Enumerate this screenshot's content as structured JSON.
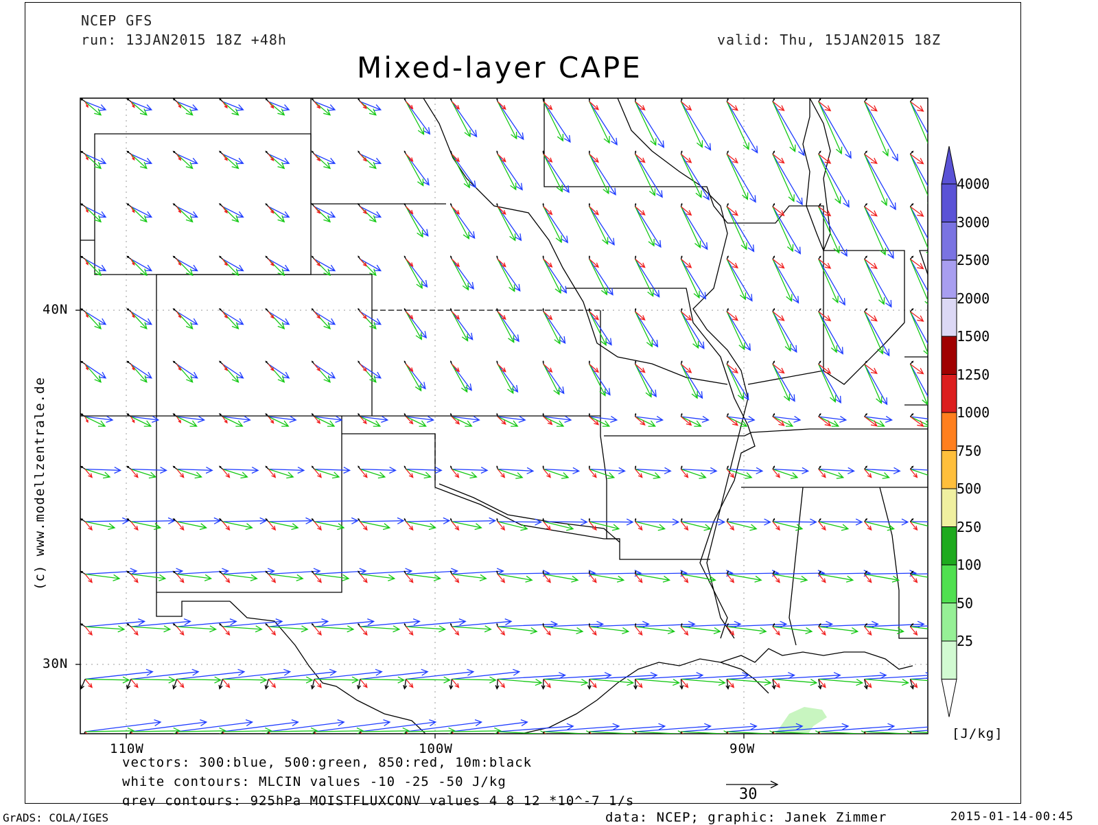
{
  "header": {
    "model": "NCEP GFS",
    "run": "run: 13JAN2015 18Z +48h",
    "valid": "valid: Thu, 15JAN2015 18Z",
    "title": "Mixed-layer CAPE"
  },
  "map": {
    "lat_labels": [
      "40N",
      "30N"
    ],
    "lon_labels": [
      "110W",
      "100W",
      "90W"
    ],
    "credit": "(c) www.modellzentrale.de",
    "reference_vector_label": "30"
  },
  "colorbar": {
    "unit": "[J/kg]",
    "levels": [
      "4000",
      "3000",
      "2500",
      "2000",
      "1500",
      "1250",
      "1000",
      "750",
      "500",
      "250",
      "100",
      "50",
      "25"
    ],
    "colors": [
      "#5a52d6",
      "#7a73e2",
      "#a89ef0",
      "#dcd8f5",
      "#a00000",
      "#dc1e1e",
      "#ff7f1e",
      "#ffbf3c",
      "#f0f0a0",
      "#1eaa1e",
      "#50e050",
      "#96f096",
      "#d2fad2"
    ]
  },
  "legend": {
    "line1": "vectors: 300:blue, 500:green, 850:red, 10m:black",
    "line2": "white contours: MLCIN values -10 -25 -50 J/kg",
    "line3": "grey contours: 925hPa MOISTFLUXCONV values 4 8 12 *10^-7 1/s"
  },
  "footer": {
    "left": "GrADS: COLA/IGES",
    "center": "data: NCEP; graphic: Janek Zimmer",
    "right": "2015-01-14-00:45"
  },
  "vector_colors": {
    "300": "#1e3cff",
    "500": "#14c814",
    "850": "#f01e1e",
    "10m": "#000000"
  }
}
